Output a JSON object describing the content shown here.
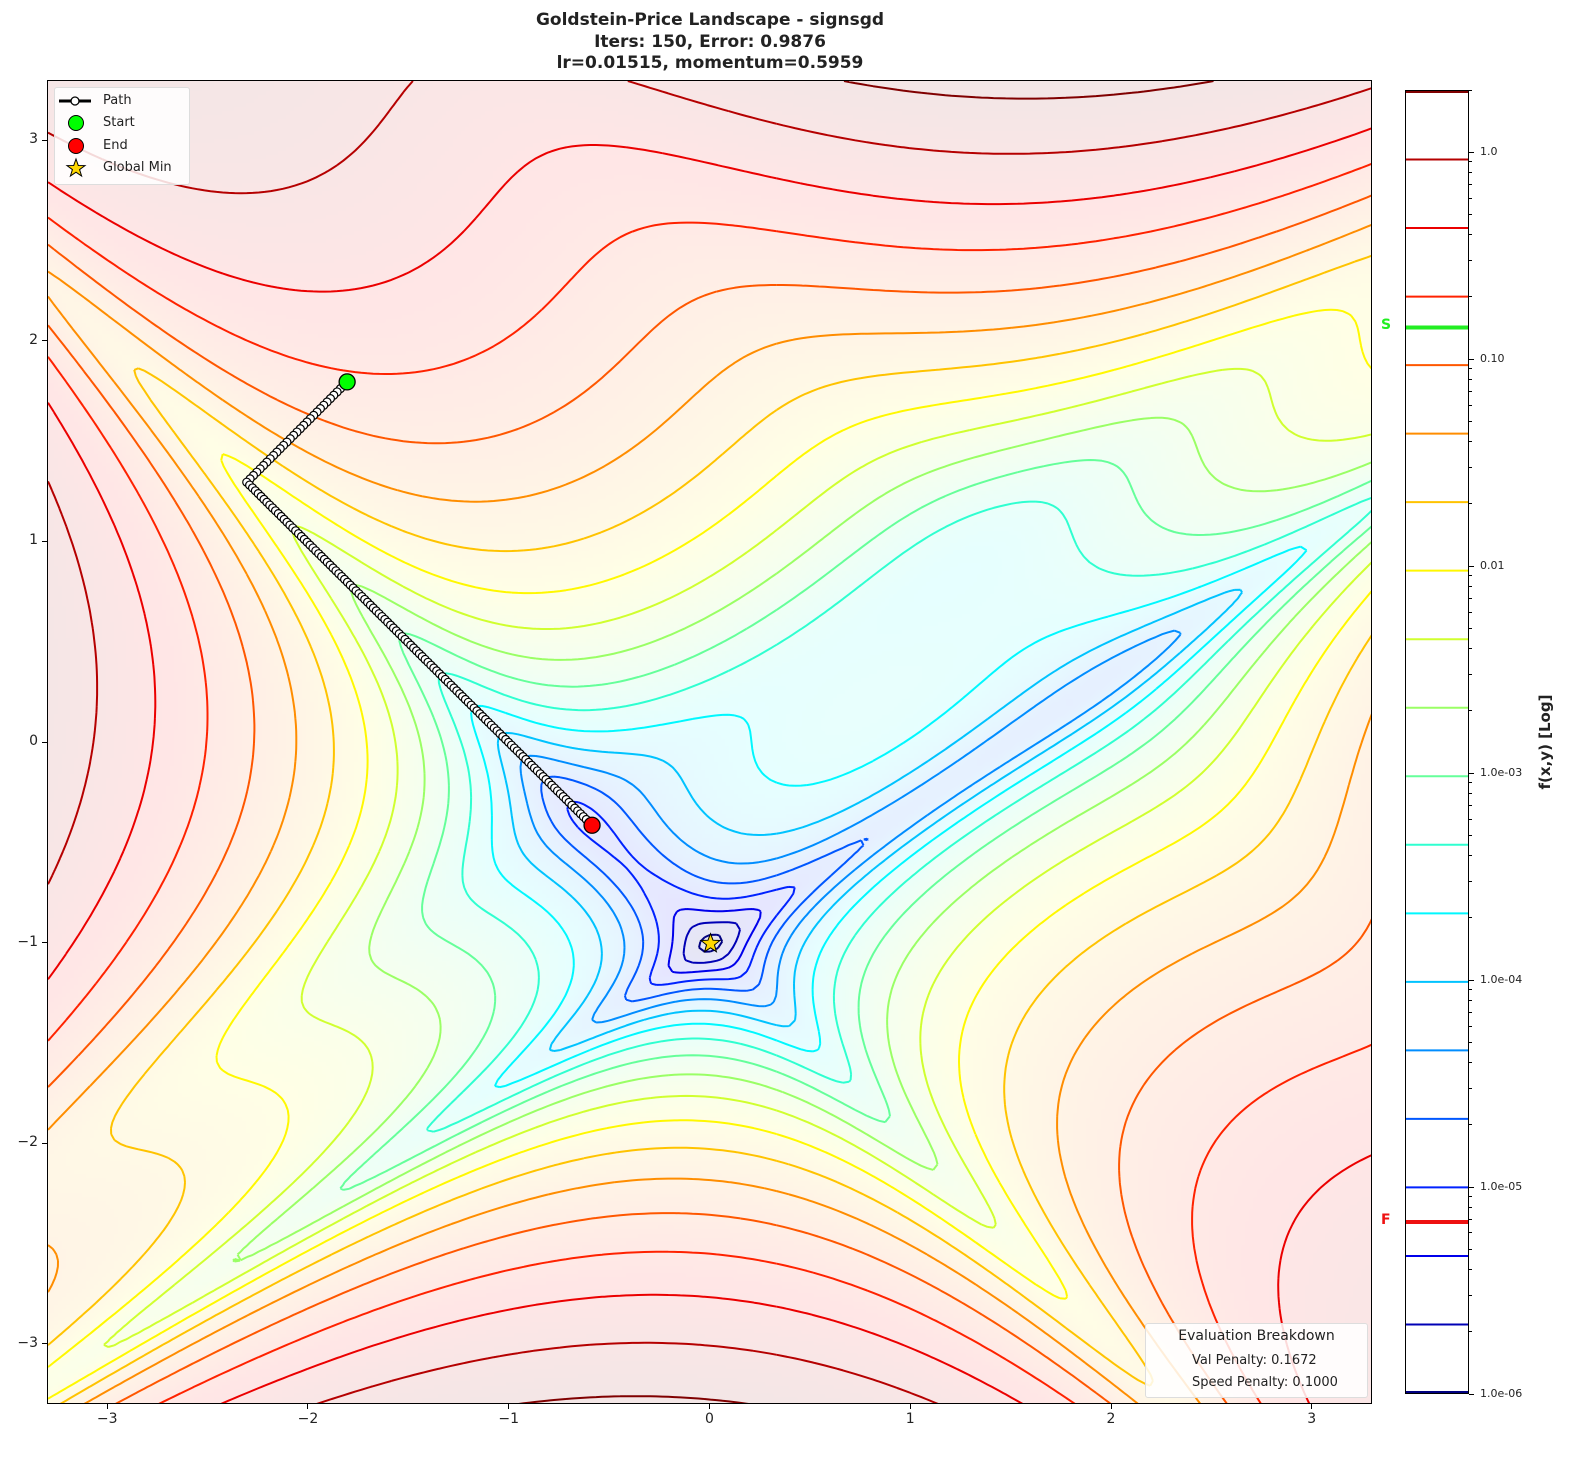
{
  "chart_data": {
    "type": "contour",
    "title": [
      "Goldstein-Price Landscape - signsgd",
      "Iters: 150, Error: 0.9876",
      "lr=0.01515, momentum=0.5959"
    ],
    "function": "Goldstein-Price",
    "optimizer": "signsgd",
    "iterations": 150,
    "error": 0.9876,
    "lr": 0.01515,
    "momentum": 0.5959,
    "xlim": [
      -3.3,
      3.3
    ],
    "ylim": [
      -3.3,
      3.3
    ],
    "x_ticks": [
      "−3",
      "−2",
      "−1",
      "0",
      "1",
      "2",
      "3"
    ],
    "y_ticks": [
      "−3",
      "−2",
      "−1",
      "0",
      "1",
      "2",
      "3"
    ],
    "contour_levels": 20,
    "colormap": "jet",
    "colorbar": {
      "label": "f(x,y) [Log]",
      "scale": "log",
      "range": [
        1e-06,
        2.0
      ],
      "tick_values": [
        1.0,
        0.1,
        0.01,
        0.001,
        0.0001,
        1e-05,
        1e-06
      ],
      "tick_labels": [
        "1.0",
        "0.10",
        "0.01",
        "1.0e-03",
        "1.0e-04",
        "1.0e-05",
        "1.0e-06"
      ],
      "start_marker": {
        "label": "S",
        "value": 0.144,
        "color": "#22ee22"
      },
      "end_marker": {
        "label": "F",
        "value": 6.85e-06,
        "color": "#ee1111"
      }
    },
    "path": {
      "waypoints": [
        [
          -1.81,
          1.8
        ],
        [
          -2.31,
          1.3
        ],
        [
          -0.59,
          -0.41
        ]
      ],
      "color": "#000000",
      "marker_color": "#ffffff"
    },
    "start": {
      "x": -1.81,
      "y": 1.8,
      "color": "#00ff00"
    },
    "end": {
      "x": -0.59,
      "y": -0.41,
      "color": "#ff0000"
    },
    "global_min": {
      "x": 0,
      "y": -1,
      "color": "#ffd700"
    },
    "legend": {
      "placement": "top-left",
      "entries": [
        "Path",
        "Start",
        "End",
        "Global Min"
      ]
    },
    "evaluation": {
      "title": "Evaluation Breakdown",
      "lines": [
        "Val Penalty: 0.1672",
        "Speed Penalty: 0.1000"
      ]
    }
  }
}
